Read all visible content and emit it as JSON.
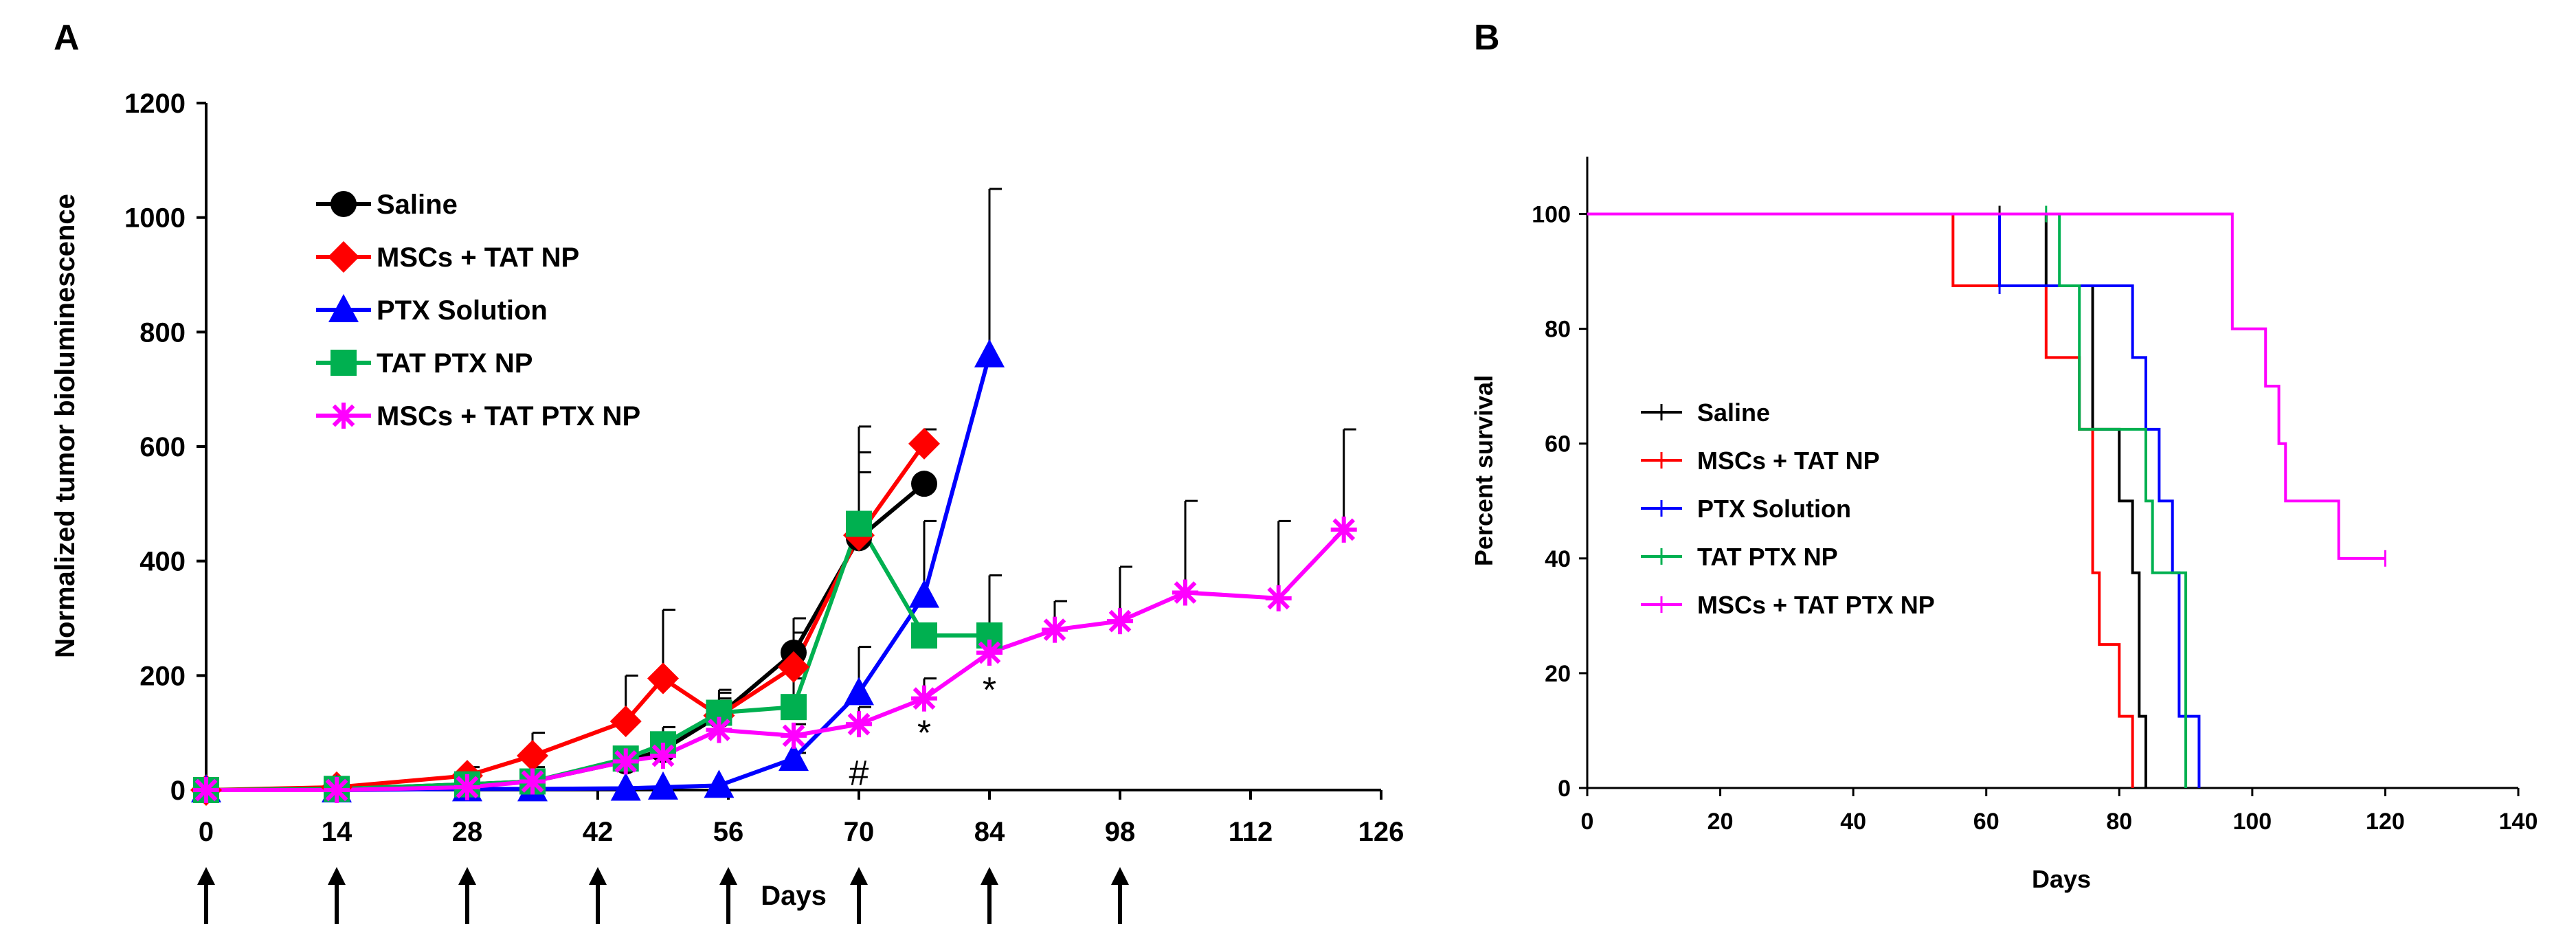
{
  "panels": {
    "a": {
      "letter": "A",
      "ylabel": "Normalized tumor bioluminescence",
      "xlabel": "Days"
    },
    "b": {
      "letter": "B",
      "ylabel": "Percent survival",
      "xlabel": "Days"
    }
  },
  "chart_data": [
    {
      "type": "line",
      "panel": "A",
      "xlabel": "Days",
      "ylabel": "Normalized tumor bioluminescence",
      "xlim": [
        0,
        126
      ],
      "ylim": [
        0,
        1200
      ],
      "xticks": [
        0,
        14,
        28,
        42,
        56,
        70,
        84,
        98,
        112,
        126
      ],
      "yticks": [
        0,
        200,
        400,
        600,
        800,
        1000,
        1200
      ],
      "legend_position": "top-left",
      "treatment_arrow_days": [
        0,
        14,
        28,
        42,
        56,
        70,
        84,
        98
      ],
      "annotations": [
        {
          "text": "#",
          "x": 70,
          "y": 30
        },
        {
          "text": "*",
          "x": 77,
          "y": 100
        },
        {
          "text": "*",
          "x": 84,
          "y": 175
        }
      ],
      "series": [
        {
          "name": "Saline",
          "color": "#000000",
          "marker": "circle",
          "x": [
            0,
            14,
            28,
            35,
            45,
            49,
            55,
            63,
            70,
            77
          ],
          "y": [
            0,
            2,
            10,
            15,
            50,
            70,
            130,
            240,
            440,
            535
          ],
          "err": [
            0,
            0,
            20,
            25,
            20,
            25,
            30,
            60,
            150,
            0
          ]
        },
        {
          "name": "MSCs + TAT NP",
          "color": "#ff0000",
          "marker": "diamond",
          "x": [
            0,
            14,
            28,
            35,
            45,
            49,
            55,
            63,
            70,
            77
          ],
          "y": [
            0,
            5,
            25,
            60,
            120,
            195,
            130,
            215,
            445,
            605
          ],
          "err": [
            0,
            0,
            15,
            40,
            80,
            120,
            40,
            60,
            110,
            25
          ]
        },
        {
          "name": "PTX Solution",
          "color": "#0000ff",
          "marker": "triangle",
          "x": [
            0,
            14,
            28,
            35,
            45,
            49,
            55,
            63,
            70,
            77,
            84
          ],
          "y": [
            0,
            0,
            2,
            2,
            3,
            5,
            8,
            55,
            170,
            340,
            760
          ],
          "err": [
            0,
            0,
            0,
            0,
            0,
            0,
            0,
            10,
            80,
            130,
            290
          ]
        },
        {
          "name": "TAT PTX NP",
          "color": "#00b050",
          "marker": "square",
          "x": [
            0,
            14,
            28,
            35,
            45,
            49,
            55,
            63,
            70,
            77,
            84
          ],
          "y": [
            0,
            2,
            10,
            15,
            55,
            80,
            135,
            145,
            465,
            270,
            270
          ],
          "err": [
            0,
            0,
            10,
            10,
            20,
            30,
            40,
            50,
            170,
            0,
            105
          ]
        },
        {
          "name": "MSCs + TAT PTX NP",
          "color": "#ff00ff",
          "marker": "star",
          "x": [
            0,
            14,
            28,
            35,
            45,
            49,
            55,
            63,
            70,
            77,
            84,
            91,
            98,
            105,
            115,
            122
          ],
          "y": [
            0,
            0,
            5,
            15,
            50,
            60,
            105,
            95,
            115,
            160,
            240,
            280,
            295,
            345,
            335,
            455
          ],
          "err": [
            0,
            0,
            5,
            10,
            15,
            20,
            20,
            20,
            30,
            35,
            40,
            50,
            95,
            160,
            135,
            175
          ]
        }
      ]
    },
    {
      "type": "line",
      "subtype": "kaplan-meier",
      "panel": "B",
      "xlabel": "Days",
      "ylabel": "Percent survival",
      "xlim": [
        0,
        140
      ],
      "ylim": [
        0,
        110
      ],
      "xticks": [
        0,
        20,
        40,
        60,
        80,
        100,
        120,
        140
      ],
      "yticks": [
        0,
        20,
        40,
        60,
        80,
        100
      ],
      "legend_position": "left",
      "series": [
        {
          "name": "Saline",
          "color": "#000000",
          "x": [
            0,
            69,
            76,
            80,
            82,
            83,
            84
          ],
          "y": [
            100,
            87.5,
            62.5,
            50,
            37.5,
            12.5,
            0
          ],
          "censor_x": [
            62
          ]
        },
        {
          "name": "MSCs + TAT NP",
          "color": "#ff0000",
          "x": [
            0,
            55,
            69,
            74,
            76,
            77,
            80,
            82
          ],
          "y": [
            100,
            87.5,
            75,
            62.5,
            37.5,
            25,
            12.5,
            0
          ],
          "censor_x": []
        },
        {
          "name": "PTX Solution",
          "color": "#0000ff",
          "x": [
            0,
            62,
            82,
            84,
            86,
            88,
            89,
            92
          ],
          "y": [
            100,
            87.5,
            75,
            62.5,
            50,
            37.5,
            12.5,
            0
          ],
          "censor_x": [
            62
          ]
        },
        {
          "name": "TAT PTX NP",
          "color": "#00b050",
          "x": [
            0,
            71,
            74,
            84,
            85,
            90
          ],
          "y": [
            100,
            87.5,
            62.5,
            50,
            37.5,
            0
          ],
          "censor_x": [
            69
          ]
        },
        {
          "name": "MSCs + TAT PTX NP",
          "color": "#ff00ff",
          "x": [
            0,
            97,
            102,
            104,
            105,
            113,
            120
          ],
          "y": [
            100,
            80,
            70,
            60,
            50,
            40,
            40
          ],
          "censor_x": [
            120
          ]
        }
      ]
    }
  ]
}
